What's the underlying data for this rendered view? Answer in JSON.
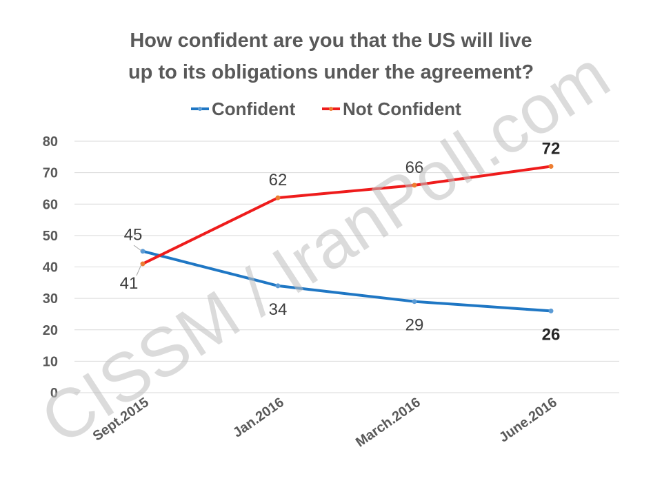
{
  "chart_data": {
    "type": "line",
    "title_lines": [
      "How confident are you that the US will live",
      "up to its obligations under the agreement?"
    ],
    "categories": [
      "Sept.2015",
      "Jan.2016",
      "March.2016",
      "June.2016"
    ],
    "series": [
      {
        "name": "Confident",
        "color": "#1f77c4",
        "values": [
          45,
          34,
          29,
          26
        ]
      },
      {
        "name": "Not Confident",
        "color": "#ee1c1c",
        "values": [
          41,
          62,
          66,
          72
        ]
      }
    ],
    "ylim": [
      0,
      80
    ],
    "yticks": [
      "0",
      "10",
      "20",
      "30",
      "40",
      "50",
      "60",
      "70",
      "80"
    ],
    "legend_position": "top",
    "grid": true
  },
  "watermark": "CISSM / IranPoll.com"
}
